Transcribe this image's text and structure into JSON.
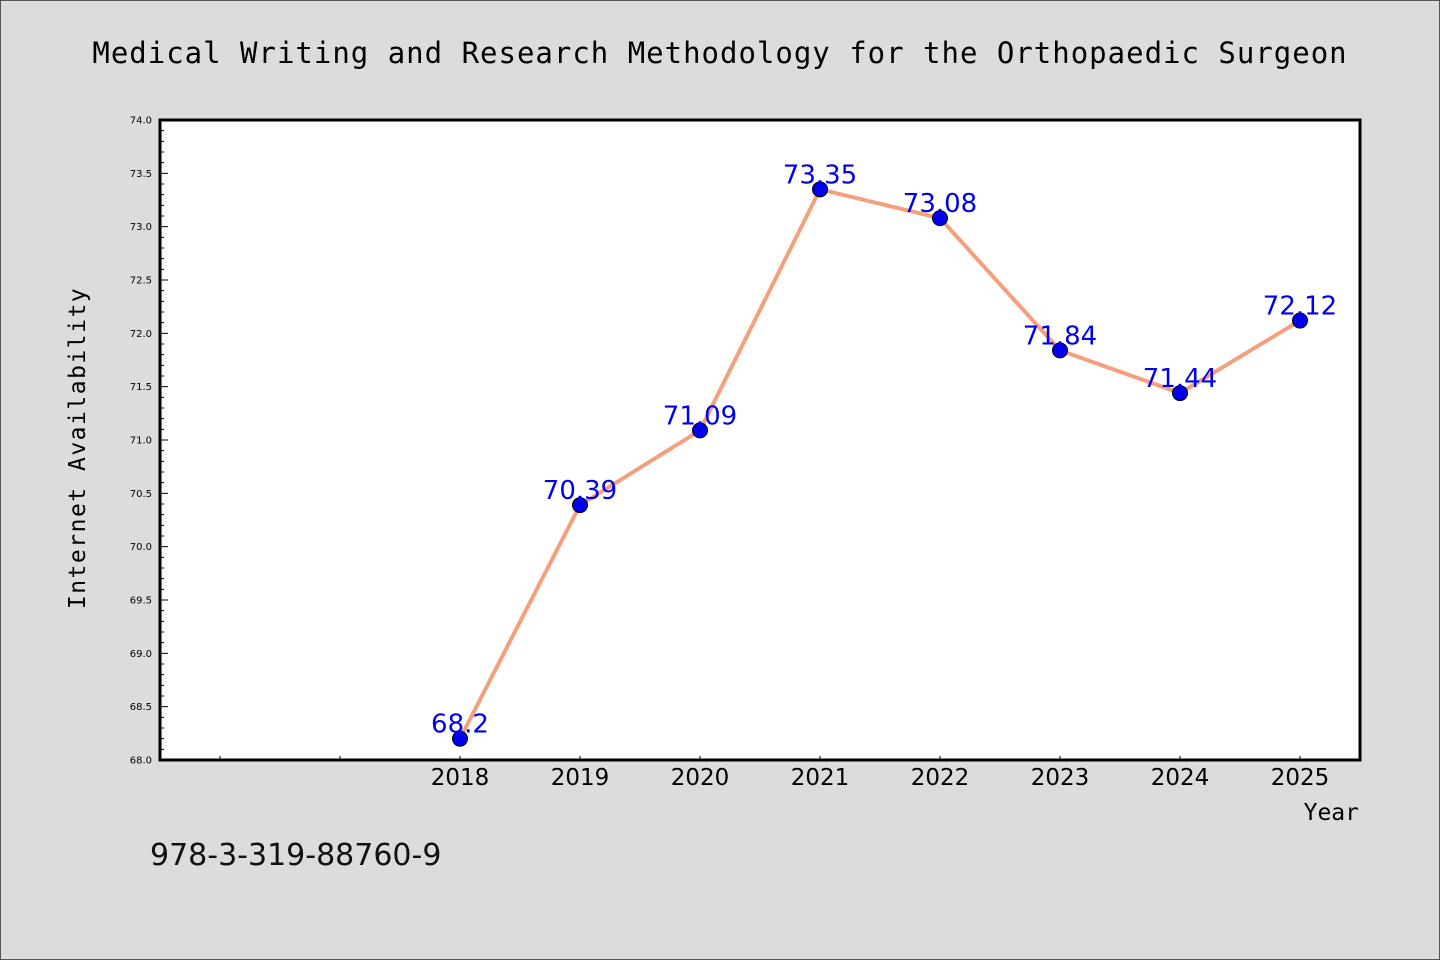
{
  "chart_data": {
    "type": "line",
    "title": "Medical Writing and Research Methodology for the Orthopaedic Surgeon",
    "xlabel": "Year",
    "ylabel": "Internet Availability",
    "x": [
      "2018",
      "2019",
      "2020",
      "2021",
      "2022",
      "2023",
      "2024",
      "2025"
    ],
    "series": [
      {
        "values": [
          68.2,
          70.39,
          71.09,
          73.35,
          73.08,
          71.84,
          71.44,
          72.12
        ],
        "data_labels": [
          "68.2",
          "70.39",
          "71.09",
          "73.35",
          "73.08",
          "71.84",
          "71.44",
          "72.12"
        ]
      }
    ],
    "ylim": [
      68.0,
      74.0
    ],
    "y_ticks": [
      "68.0",
      "68.5",
      "69.0",
      "69.5",
      "70.0",
      "70.5",
      "71.0",
      "71.5",
      "72.0",
      "72.5",
      "73.0",
      "73.5",
      "74.0"
    ],
    "grid": false,
    "colors": {
      "line": "#f4a07e",
      "marker": "#0000ee",
      "label": "#0000ee",
      "background": "#dcdcdc",
      "plot_background": "#ffffff"
    }
  },
  "footer": {
    "isbn": "978-3-319-88760-9"
  }
}
